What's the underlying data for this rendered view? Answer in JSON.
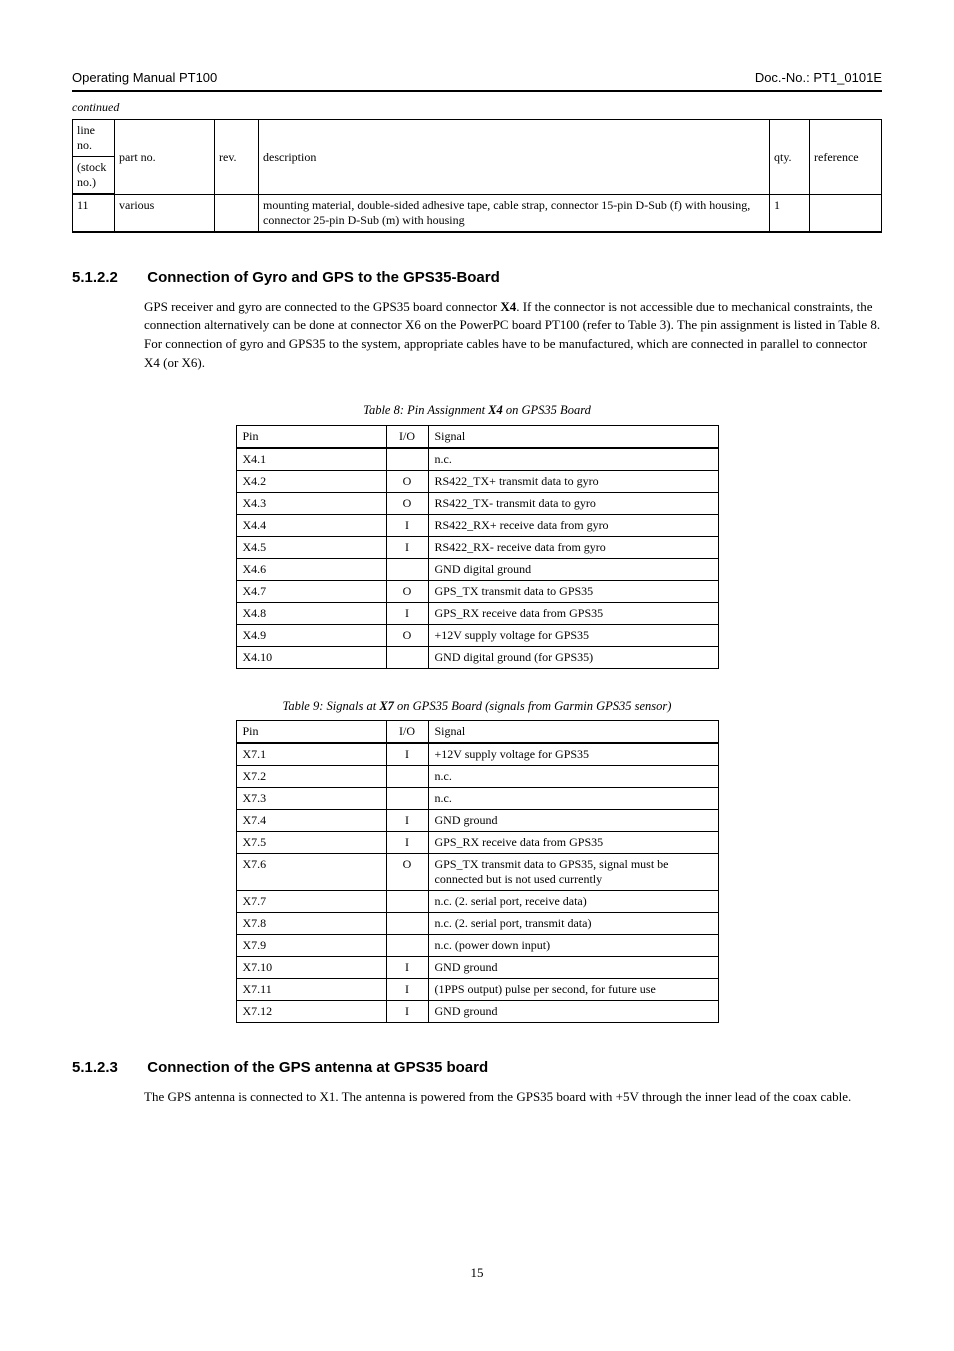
{
  "header": {
    "title_left": "Operating Manual PT100",
    "title_right": "Doc.-No.: PT1_0101E"
  },
  "continued": "continued",
  "bom": {
    "columns": {
      "line_no": "line no.",
      "part_no_a": "part no.",
      "part_no_b": "(stock no.)",
      "rev": "rev.",
      "description": "description",
      "qty": "qty.",
      "reference": "reference"
    },
    "rows": [
      {
        "line": "11",
        "part": "various",
        "rev": "",
        "desc": "mounting material, double-sided adhesive tape, cable strap, connector 15-pin D-Sub (f) with housing, connector 25-pin D-Sub (m) with housing",
        "qty": "1",
        "ref": ""
      }
    ]
  },
  "sections": {
    "s1": {
      "num": "5.1.2.2",
      "title": "Connection of Gyro and GPS to the GPS35-Board",
      "text_prefix": "GPS receiver and gyro are connected to the GPS35 board connector ",
      "text_bold": "X4",
      "text_suffix": ". If the connector is not accessible due to mechanical constraints, the connection alternatively can be done at connector X6 on the PowerPC board PT100 (refer to Table 3). The pin assignment is listed in Table 8. For connection of gyro and GPS35 to the system, appropriate cables have to be manufactured, which are connected in parallel to connector X4 (or X6)."
    },
    "s2": {
      "num": "5.1.2.3",
      "title": "Connection of the GPS antenna at GPS35 board",
      "text": "The GPS antenna is connected to X1. The antenna is powered from the GPS35 board with +5V through the inner lead of the coax cable."
    }
  },
  "table8": {
    "caption_a": "Table 8: Pin Assignment ",
    "caption_b": "X4",
    "caption_c": " on GPS35 Board",
    "columns": {
      "param": "Pin",
      "val": "I/O",
      "desc": "Signal"
    },
    "rows": [
      {
        "param": "X4.1",
        "val": "",
        "desc": "n.c."
      },
      {
        "param": "X4.2",
        "val": "O",
        "desc": "RS422_TX+ transmit data to gyro"
      },
      {
        "param": "X4.3",
        "val": "O",
        "desc": "RS422_TX- transmit data to gyro"
      },
      {
        "param": "X4.4",
        "val": "I",
        "desc": "RS422_RX+ receive data from gyro"
      },
      {
        "param": "X4.5",
        "val": "I",
        "desc": "RS422_RX- receive data from gyro"
      },
      {
        "param": "X4.6",
        "val": "",
        "desc": "GND digital ground"
      },
      {
        "param": "X4.7",
        "val": "O",
        "desc": "GPS_TX transmit data to GPS35"
      },
      {
        "param": "X4.8",
        "val": "I",
        "desc": "GPS_RX receive data from GPS35"
      },
      {
        "param": "X4.9",
        "val": "O",
        "desc": "+12V supply voltage for GPS35"
      },
      {
        "param": "X4.10",
        "val": "",
        "desc": "GND digital ground (for GPS35)"
      }
    ]
  },
  "table9": {
    "caption_a": "Table 9: Signals at ",
    "caption_b": "X7",
    "caption_c": " on GPS35 Board (signals from Garmin GPS35 sensor)",
    "columns": {
      "param": "Pin",
      "val": "I/O",
      "desc": "Signal"
    },
    "rows": [
      {
        "param": "X7.1",
        "val": "I",
        "desc": "+12V supply voltage for GPS35"
      },
      {
        "param": "X7.2",
        "val": "",
        "desc": "n.c."
      },
      {
        "param": "X7.3",
        "val": "",
        "desc": "n.c."
      },
      {
        "param": "X7.4",
        "val": "I",
        "desc": "GND ground"
      },
      {
        "param": "X7.5",
        "val": "I",
        "desc": "GPS_RX receive data from GPS35"
      },
      {
        "param": "X7.6",
        "val": "O",
        "desc": "GPS_TX transmit data to GPS35, signal must be connected but is not used currently"
      },
      {
        "param": "X7.7",
        "val": "",
        "desc": "n.c. (2. serial port, receive data)"
      },
      {
        "param": "X7.8",
        "val": "",
        "desc": "n.c. (2. serial port, transmit data)"
      },
      {
        "param": "X7.9",
        "val": "",
        "desc": "n.c. (power down input)"
      },
      {
        "param": "X7.10",
        "val": "I",
        "desc": "GND ground"
      },
      {
        "param": "X7.11",
        "val": "I",
        "desc": "(1PPS output) pulse per second, for future use"
      },
      {
        "param": "X7.12",
        "val": "I",
        "desc": "GND ground"
      }
    ]
  },
  "page_number": "15"
}
